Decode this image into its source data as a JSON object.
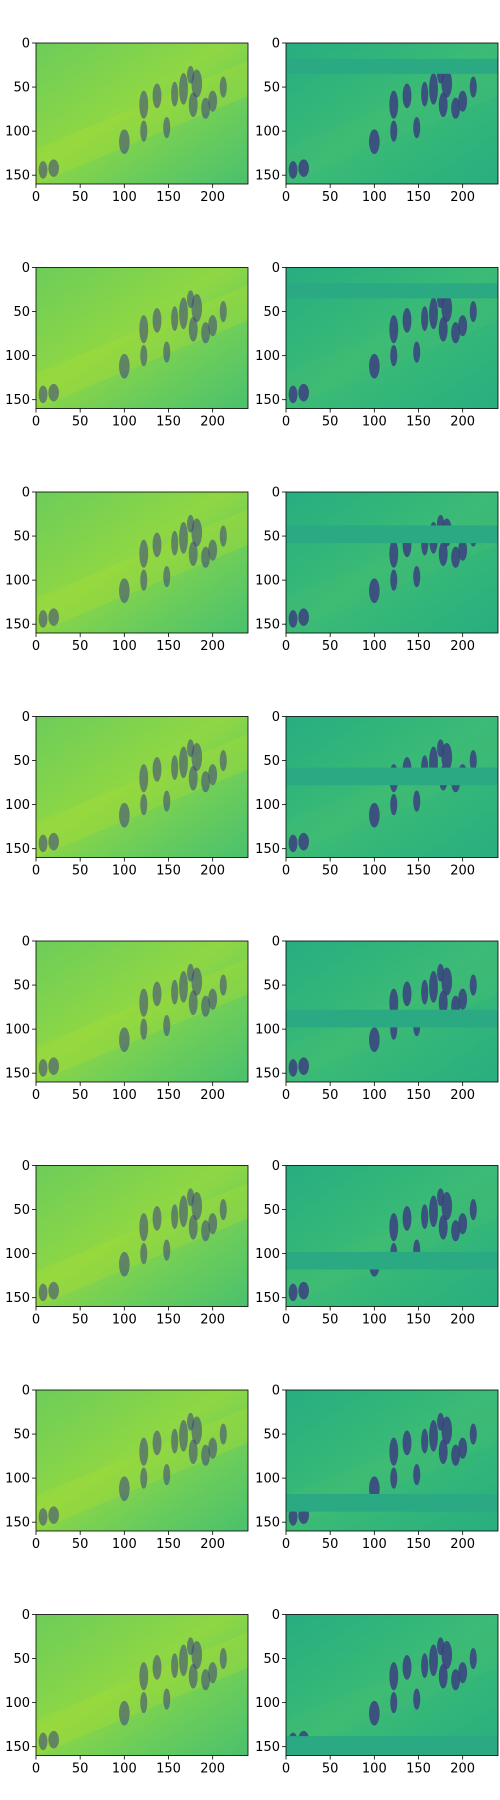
{
  "figure": {
    "rows": 8,
    "cols": 2,
    "x_ticks": [
      "0",
      "50",
      "100",
      "150",
      "200"
    ],
    "y_ticks": [
      "0",
      "50",
      "100",
      "150"
    ],
    "colormap": "viridis",
    "image_extent": {
      "x": [
        0,
        240
      ],
      "y": [
        160,
        0
      ]
    },
    "bands_y_data": [
      [
        18,
        35
      ],
      [
        18,
        35
      ],
      [
        38,
        58
      ],
      [
        58,
        78
      ],
      [
        78,
        98
      ],
      [
        98,
        118
      ],
      [
        118,
        138
      ],
      [
        138,
        160
      ]
    ]
  },
  "colors": {
    "frame": "#000000",
    "tick_text": "#000000",
    "bg_left": "#5cc863",
    "bg_right": "#29af7f",
    "band_right": "#2aa983",
    "dark_figure": "#3b3f80",
    "ground_light": "#90d743"
  }
}
